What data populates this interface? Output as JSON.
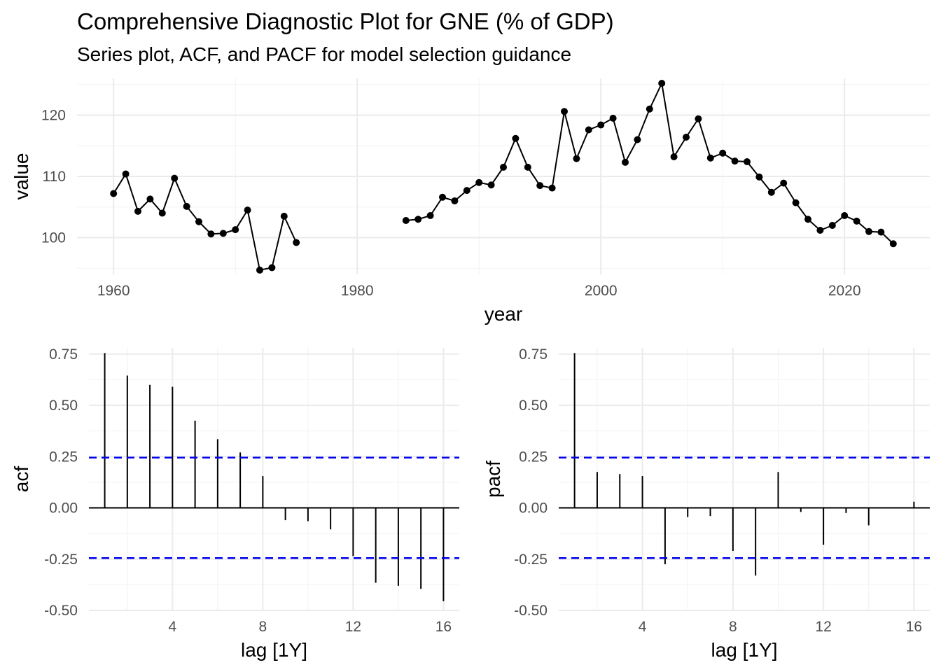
{
  "title": "Comprehensive Diagnostic Plot for GNE (% of GDP)",
  "subtitle": "Series plot, ACF, and PACF for model selection guidance",
  "chart_data": [
    {
      "type": "line",
      "xlabel": "year",
      "ylabel": "value",
      "xlim": [
        1957,
        2027
      ],
      "ylim": [
        94,
        126
      ],
      "x_ticks": [
        1960,
        1980,
        2000,
        2020
      ],
      "y_ticks": [
        100,
        110,
        120
      ],
      "x_tick_labels": [
        "1960",
        "1980",
        "2000",
        "2020"
      ],
      "y_tick_labels": [
        "100",
        "110",
        "120"
      ],
      "grid": true,
      "markers": true,
      "series": [
        {
          "x": [
            1960,
            1961,
            1962,
            1963,
            1964,
            1965,
            1966,
            1967,
            1968,
            1969,
            1970,
            1971,
            1972,
            1973,
            1974,
            1975
          ],
          "values": [
            107.2,
            110.4,
            104.3,
            106.3,
            104.0,
            109.7,
            105.1,
            102.6,
            100.6,
            100.7,
            101.3,
            104.5,
            94.7,
            95.1,
            103.5,
            99.2
          ]
        },
        {
          "x": [
            1984,
            1985,
            1986,
            1987,
            1988,
            1989,
            1990,
            1991,
            1992,
            1993,
            1994,
            1995,
            1996,
            1997,
            1998,
            1999,
            2000,
            2001,
            2002,
            2003,
            2004,
            2005,
            2006,
            2007,
            2008,
            2009,
            2010,
            2011,
            2012,
            2013,
            2014,
            2015,
            2016,
            2017,
            2018,
            2019,
            2020,
            2021,
            2022,
            2023,
            2024
          ],
          "values": [
            102.8,
            103.0,
            103.6,
            106.6,
            106.0,
            107.7,
            109.0,
            108.6,
            111.5,
            116.2,
            111.5,
            108.5,
            108.1,
            120.6,
            112.9,
            117.6,
            118.4,
            119.5,
            112.3,
            116.0,
            121.0,
            125.2,
            113.2,
            116.4,
            119.4,
            113.0,
            113.8,
            112.5,
            112.4,
            109.9,
            107.4,
            108.9,
            105.7,
            103.0,
            101.2,
            102.0,
            103.6,
            102.7,
            101.0,
            100.9,
            99.0
          ]
        }
      ]
    },
    {
      "type": "bar",
      "xlabel": "lag [1Y]",
      "ylabel": "acf",
      "xlim": [
        0.3,
        16.7
      ],
      "ylim": [
        -0.5,
        0.78
      ],
      "x_ticks": [
        4,
        8,
        12,
        16
      ],
      "y_ticks": [
        -0.5,
        -0.25,
        0,
        0.25,
        0.5,
        0.75
      ],
      "x_tick_labels": [
        "4",
        "8",
        "12",
        "16"
      ],
      "y_tick_labels": [
        "-0.50",
        "-0.25",
        "0.00",
        "0.25",
        "0.50",
        "0.75"
      ],
      "grid": true,
      "categories": [
        1,
        2,
        3,
        4,
        5,
        6,
        7,
        8,
        9,
        10,
        11,
        12,
        13,
        14,
        15,
        16
      ],
      "values": [
        0.755,
        0.645,
        0.6,
        0.59,
        0.425,
        0.335,
        0.27,
        0.155,
        -0.06,
        -0.065,
        -0.105,
        -0.235,
        -0.365,
        -0.38,
        -0.395,
        -0.455
      ],
      "confidence_bounds": [
        0.245,
        -0.245
      ],
      "bound_color": "#0000ee"
    },
    {
      "type": "bar",
      "xlabel": "lag [1Y]",
      "ylabel": "pacf",
      "xlim": [
        0.3,
        16.7
      ],
      "ylim": [
        -0.5,
        0.78
      ],
      "x_ticks": [
        4,
        8,
        12,
        16
      ],
      "y_ticks": [
        -0.5,
        -0.25,
        0,
        0.25,
        0.5,
        0.75
      ],
      "x_tick_labels": [
        "4",
        "8",
        "12",
        "16"
      ],
      "y_tick_labels": [
        "-0.50",
        "-0.25",
        "0.00",
        "0.25",
        "0.50",
        "0.75"
      ],
      "grid": true,
      "categories": [
        1,
        2,
        3,
        4,
        5,
        6,
        7,
        8,
        9,
        10,
        11,
        12,
        13,
        14,
        15,
        16
      ],
      "values": [
        0.755,
        0.175,
        0.165,
        0.155,
        -0.275,
        -0.045,
        -0.04,
        -0.21,
        -0.33,
        0.175,
        -0.02,
        -0.18,
        -0.025,
        -0.085,
        0.0,
        0.03
      ],
      "confidence_bounds": [
        0.245,
        -0.245
      ],
      "bound_color": "#0000ee"
    }
  ]
}
